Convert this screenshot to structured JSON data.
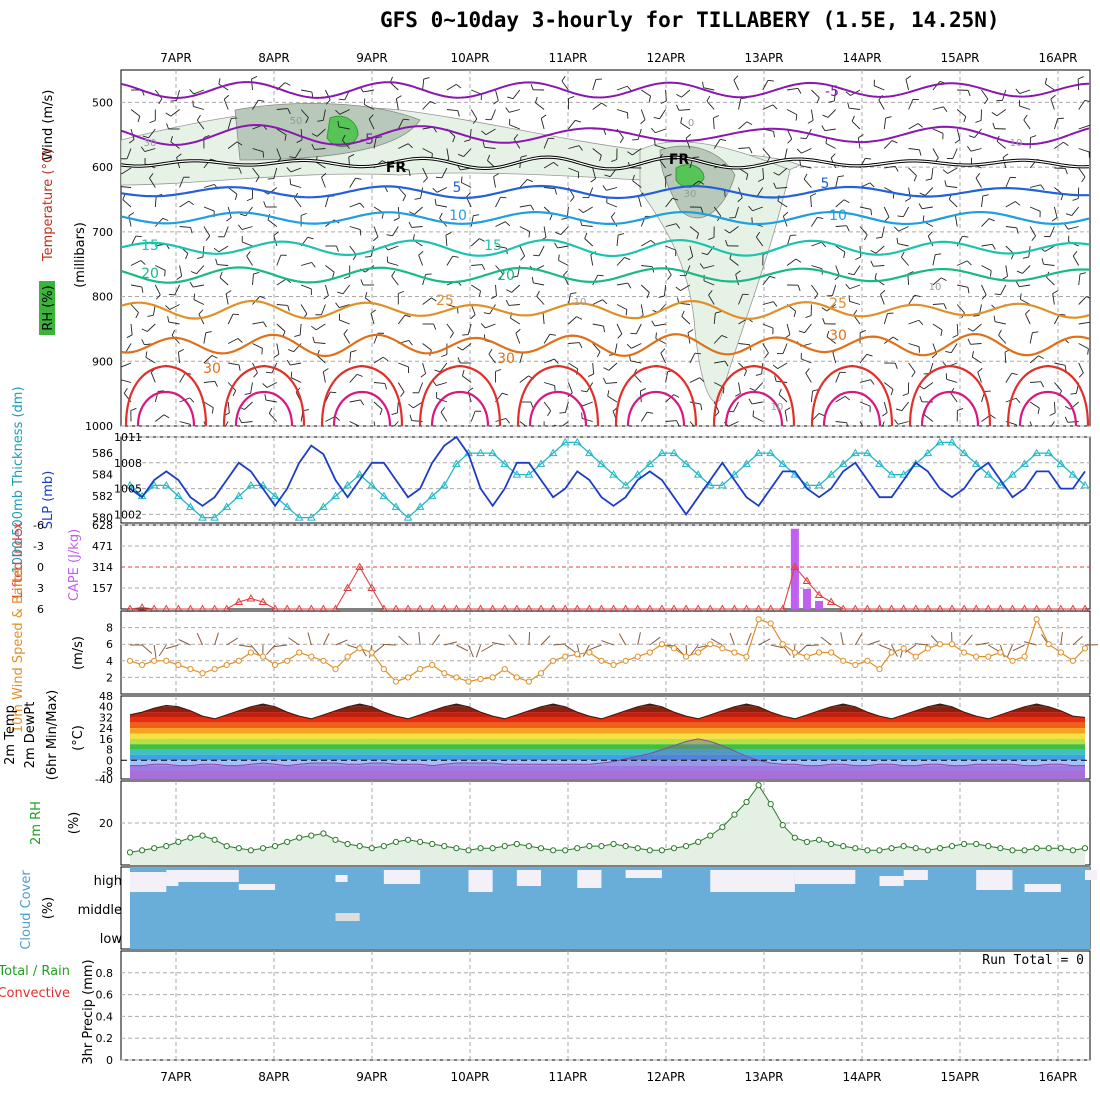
{
  "title": "GFS 0~10day 3-hourly for TILLABERY (1.5E, 14.25N)",
  "dates": [
    "7APR",
    "8APR",
    "9APR",
    "10APR",
    "11APR",
    "12APR",
    "13APR",
    "14APR",
    "15APR",
    "16APR"
  ],
  "panels": {
    "upper": {
      "label_wind": "Wind (m/s)",
      "label_temp": "Temperature (°C)",
      "label_rh": "RH (%)",
      "label_mb": "(millibars)",
      "pressure_ticks": [
        "500",
        "600",
        "700",
        "800",
        "900",
        "1000"
      ],
      "isotherm_labels": [
        "-5",
        "-5",
        "5",
        "5",
        "10",
        "10",
        "15",
        "15",
        "20",
        "20",
        "25",
        "25",
        "30",
        "30",
        "30",
        "FR",
        "FR",
        "50",
        "30",
        "10",
        "10",
        "30",
        "10",
        "10",
        "0"
      ]
    },
    "thickness": {
      "label_left": "1000-500mb Thickness (dm)",
      "label_right": "SLP (mb)",
      "left_ticks": [
        "586",
        "584",
        "582",
        "580"
      ],
      "right_ticks": [
        "1011",
        "1008",
        "1005",
        "1002"
      ],
      "colors": {
        "thickness": "#22b8c8",
        "slp": "#1c3cc8"
      }
    },
    "cape": {
      "label_li": "Lifted Index",
      "label_cape": "CAPE (J/kg)",
      "li_ticks": [
        "-6",
        "-3",
        "0",
        "3",
        "6"
      ],
      "cape_ticks": [
        "628",
        "471",
        "314",
        "157"
      ]
    },
    "wind10": {
      "label": "10m Wind Speed & Barbs",
      "unit": "(m/s)",
      "ticks": [
        "8",
        "6",
        "4",
        "2"
      ]
    },
    "temp2m": {
      "label": "2m Temp 2m DewPt (6hr Min/Max)",
      "unit": "(°C)",
      "ticks": [
        "48",
        "40",
        "32",
        "24",
        "16",
        "8",
        "0",
        "-8",
        "-40"
      ]
    },
    "rh2m": {
      "label": "2m RH",
      "unit": "(%)",
      "ticks": [
        "20"
      ]
    },
    "cloud": {
      "label": "Cloud Cover",
      "unit": "(%)",
      "levels": [
        "high",
        "middle",
        "low"
      ]
    },
    "precip": {
      "label_total": "Total / Rain",
      "label_conv": "Convective",
      "unit": "3hr Precip (mm)",
      "ticks": [
        "0.8",
        "0.6",
        "0.4",
        "0.2",
        "0"
      ],
      "run_total": "Run Total = 0"
    }
  },
  "chart_data": [
    {
      "type": "line",
      "title": "1000-500mb Thickness (dm) / SLP (mb)",
      "series": [
        {
          "name": "1000-500mb Thickness (dm)",
          "values": [
            583,
            582,
            583,
            583,
            582,
            581,
            580,
            580,
            581,
            582,
            583,
            583,
            582,
            581,
            580,
            580,
            581,
            582,
            583,
            584,
            583,
            582,
            581,
            580,
            581,
            582,
            583,
            585,
            586,
            586,
            586,
            585,
            584,
            584,
            585,
            586,
            587,
            587,
            586,
            585,
            584,
            583,
            584,
            585,
            586,
            586,
            585,
            584,
            583,
            583,
            584,
            585,
            586,
            586,
            585,
            584,
            583,
            583,
            584,
            585,
            586,
            586,
            585,
            584,
            584,
            585,
            586,
            587,
            587,
            586,
            585,
            584,
            583,
            584,
            585,
            586,
            586,
            585,
            584,
            583
          ]
        },
        {
          "name": "SLP (mb)",
          "values": [
            1005,
            1004,
            1006,
            1007,
            1006,
            1004,
            1003,
            1004,
            1006,
            1008,
            1007,
            1005,
            1003,
            1005,
            1008,
            1010,
            1009,
            1006,
            1004,
            1006,
            1008,
            1008,
            1006,
            1004,
            1005,
            1008,
            1010,
            1011,
            1009,
            1005,
            1003,
            1005,
            1008,
            1008,
            1006,
            1004,
            1005,
            1007,
            1006,
            1004,
            1003,
            1004,
            1006,
            1007,
            1006,
            1004,
            1002,
            1004,
            1006,
            1008,
            1006,
            1004,
            1003,
            1005,
            1007,
            1007,
            1005,
            1004,
            1005,
            1007,
            1008,
            1006,
            1004,
            1004,
            1006,
            1008,
            1007,
            1005,
            1004,
            1005,
            1007,
            1008,
            1006,
            1004,
            1005,
            1007,
            1007,
            1005,
            1005,
            1007
          ]
        }
      ],
      "ylim_left": [
        579.5,
        587.5
      ],
      "ylim_right": [
        1001,
        1011
      ]
    },
    {
      "type": "line",
      "title": "Lifted Index / CAPE (J/kg)",
      "series": [
        {
          "name": "Lifted Index",
          "values": [
            6,
            5.8,
            6,
            6,
            6,
            6,
            6,
            6,
            6,
            5,
            4.5,
            5,
            6,
            6,
            6,
            6,
            6,
            6,
            3,
            0,
            3,
            6,
            6,
            6,
            6,
            6,
            6,
            6,
            6,
            6,
            6,
            6,
            6,
            6,
            6,
            6,
            6,
            6,
            6,
            6,
            6,
            6,
            6,
            6,
            6,
            6,
            6,
            6,
            6,
            6,
            6,
            6,
            6,
            6,
            6,
            0,
            2,
            4,
            5,
            6,
            6,
            6,
            6,
            6,
            6,
            6,
            6,
            6,
            6,
            6,
            6,
            6,
            6,
            6,
            6,
            6,
            6,
            6,
            6,
            6
          ]
        },
        {
          "name": "CAPE (J/kg)",
          "values": [
            0,
            0,
            0,
            0,
            0,
            0,
            0,
            0,
            0,
            0,
            0,
            0,
            0,
            0,
            0,
            0,
            0,
            0,
            0,
            0,
            0,
            0,
            0,
            0,
            0,
            0,
            0,
            0,
            0,
            0,
            0,
            0,
            0,
            0,
            0,
            0,
            0,
            0,
            0,
            0,
            0,
            0,
            0,
            0,
            0,
            0,
            0,
            0,
            0,
            0,
            0,
            0,
            0,
            0,
            0,
            600,
            150,
            60,
            0,
            0,
            0,
            0,
            0,
            0,
            0,
            0,
            0,
            0,
            0,
            0,
            0,
            0,
            0,
            0,
            0,
            0,
            0,
            0,
            0,
            0
          ]
        }
      ],
      "ylim_li": [
        6,
        -6
      ],
      "ylim_cape": [
        0,
        628
      ]
    },
    {
      "type": "line",
      "title": "10m Wind Speed",
      "series": [
        {
          "name": "10m Wind Speed",
          "values": [
            4,
            3.5,
            4,
            4,
            3.5,
            3,
            2.5,
            3,
            3.5,
            4,
            5,
            4.5,
            3.5,
            4,
            5,
            4.5,
            4,
            3,
            4.5,
            5.5,
            5,
            3,
            1.5,
            2,
            3,
            3.5,
            2.5,
            2,
            1.5,
            1.8,
            2,
            3,
            2,
            1.5,
            2.5,
            4,
            4.5,
            4.8,
            5,
            4,
            3.5,
            4,
            4.5,
            5,
            6,
            5.5,
            4.5,
            5,
            6,
            5.5,
            5,
            4.5,
            9,
            8.5,
            6,
            5,
            4.5,
            5,
            5,
            4,
            3.5,
            4,
            3,
            5,
            5.5,
            4.5,
            5.5,
            6,
            6,
            5,
            4.5,
            4.5,
            5,
            4,
            4.5,
            9,
            6,
            5,
            4,
            5.5
          ]
        }
      ],
      "ylim": [
        0,
        10
      ]
    },
    {
      "type": "area",
      "title": "2m Temp / 2m DewPt",
      "series": [
        {
          "name": "2m Temp",
          "values": [
            34,
            36,
            39,
            41,
            40,
            37,
            33,
            31,
            34,
            37,
            40,
            42,
            40,
            36,
            33,
            31,
            34,
            37,
            40,
            42,
            40,
            36,
            33,
            31,
            34,
            37,
            40,
            42,
            40,
            36,
            33,
            31,
            34,
            37,
            40,
            42,
            40,
            36,
            33,
            31,
            34,
            37,
            40,
            42,
            40,
            36,
            33,
            31,
            34,
            37,
            40,
            42,
            40,
            36,
            33,
            31,
            34,
            37,
            40,
            42,
            40,
            36,
            33,
            31,
            34,
            37,
            40,
            42,
            40,
            36,
            33,
            31,
            34,
            37,
            40,
            42,
            40,
            37,
            33,
            32
          ]
        },
        {
          "name": "2m DewPt",
          "values": [
            -4,
            -4,
            -3,
            -3,
            -4,
            -4,
            -3,
            -3,
            -4,
            -4,
            -3,
            -2,
            -3,
            -4,
            -3,
            -2,
            -2,
            -2,
            -3,
            -3,
            -2,
            -2,
            -3,
            -3,
            -3,
            -4,
            -3,
            -2,
            -2,
            -2,
            -2,
            -3,
            -3,
            -3,
            -3,
            -3,
            -3,
            -3,
            -3,
            -2,
            -1,
            1,
            3,
            5,
            8,
            11,
            14,
            16,
            14,
            11,
            7,
            3,
            0,
            -2,
            -3,
            -3,
            -4,
            -4,
            -3,
            -3,
            -4,
            -4,
            -3,
            -3,
            -4,
            -4,
            -3,
            -3,
            -4,
            -4,
            -3,
            -3,
            -3,
            -3,
            -4,
            -4,
            -3,
            -3,
            -4,
            -4
          ]
        }
      ],
      "ylim": [
        -40,
        48
      ]
    },
    {
      "type": "area",
      "title": "2m RH (%)",
      "series": [
        {
          "name": "2m RH",
          "values": [
            6,
            7,
            8,
            9,
            11,
            13,
            14,
            12,
            9,
            8,
            7,
            8,
            9,
            11,
            13,
            14,
            15,
            12,
            10,
            9,
            8,
            9,
            11,
            12,
            11,
            10,
            9,
            8,
            7,
            8,
            8,
            9,
            10,
            9,
            8,
            7,
            7,
            8,
            9,
            9,
            10,
            9,
            8,
            7,
            7,
            8,
            9,
            11,
            14,
            18,
            24,
            30,
            38,
            29,
            19,
            13,
            11,
            12,
            10,
            9,
            8,
            7,
            7,
            8,
            9,
            8,
            7,
            8,
            9,
            10,
            10,
            9,
            8,
            7,
            7,
            8,
            8,
            8,
            7,
            8
          ]
        }
      ],
      "ylim": [
        0,
        40
      ]
    },
    {
      "type": "bar",
      "title": "3hr Precip (mm)",
      "series": [
        {
          "name": "Total / Rain",
          "values": []
        },
        {
          "name": "Convective",
          "values": []
        }
      ],
      "ylim": [
        0,
        1
      ]
    }
  ]
}
